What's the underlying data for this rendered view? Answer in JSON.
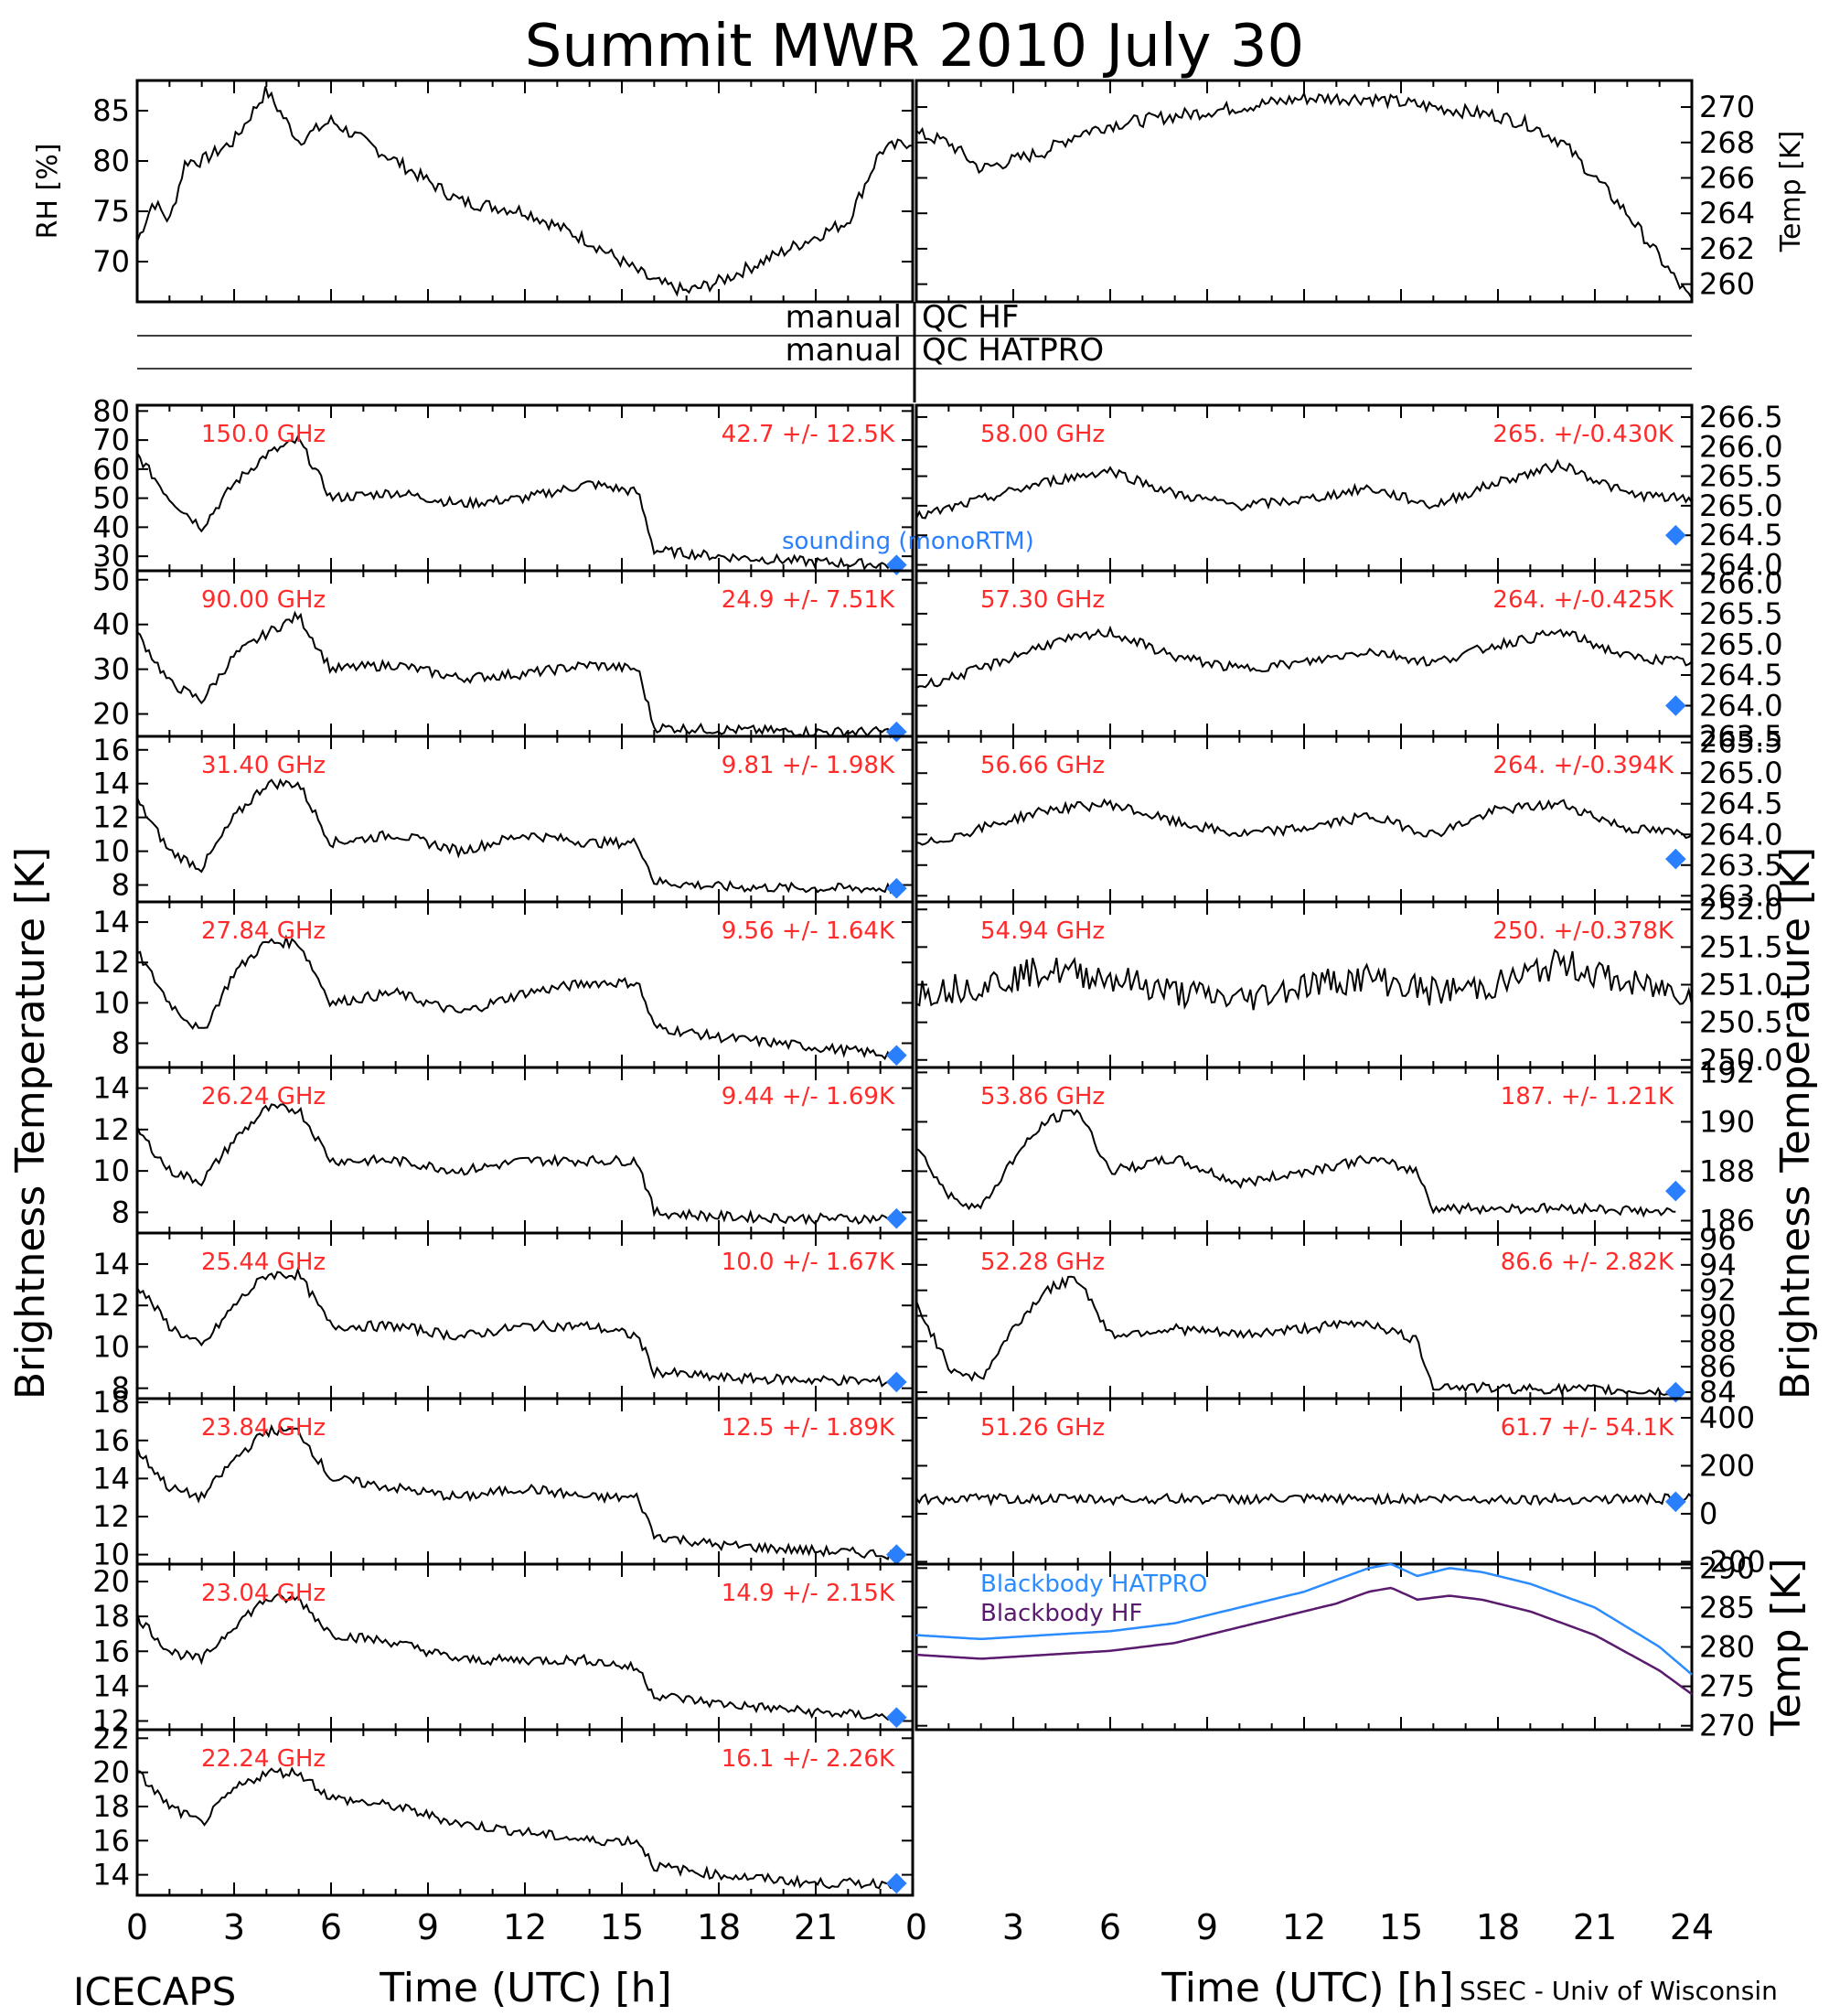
{
  "title": "Summit MWR 2010 July 30",
  "footer": {
    "left": "ICECAPS",
    "right": "SSEC - Univ of Wisconsin"
  },
  "axes": {
    "xlabel": "Time (UTC) [h]",
    "xticks": [
      "0",
      "3",
      "6",
      "9",
      "12",
      "15",
      "18",
      "21",
      "24"
    ],
    "ylabel_left": "Brightness Temperature [K]",
    "ylabel_right": "Brightness Temperature [K]"
  },
  "qc_rows": [
    {
      "left": "manual",
      "right": "QC HF"
    },
    {
      "left": "manual",
      "right": "QC HATPRO"
    }
  ],
  "colors": {
    "label_red": "#ff2a2a",
    "sounding_blue": "#2a7fff",
    "hatpro_blue": "#2a8cff",
    "hf_purple": "#5a1a6e"
  },
  "chart_data": [
    {
      "type": "line",
      "panel": "rh",
      "ylabel": "RH [%]",
      "ylim": [
        66,
        88
      ],
      "yticks": [
        70,
        75,
        80,
        85
      ],
      "x": [
        0,
        0.5,
        1,
        1.5,
        2,
        3,
        4,
        5,
        6,
        8,
        10,
        12,
        14,
        16,
        17,
        18,
        20,
        22,
        23,
        24
      ],
      "values": [
        72,
        76,
        74,
        80,
        80,
        82,
        87,
        82,
        84,
        80,
        76,
        75,
        72,
        68,
        67,
        68,
        71,
        74,
        81,
        82
      ]
    },
    {
      "type": "line",
      "panel": "temp",
      "ylabel": "Temp [K]",
      "ylim": [
        259,
        271.5
      ],
      "yticks": [
        260,
        262,
        264,
        266,
        268,
        270
      ],
      "x": [
        0,
        1,
        2,
        3,
        4,
        5,
        6,
        8,
        10,
        12,
        14,
        16,
        18,
        19,
        20,
        21,
        22,
        23,
        24
      ],
      "values": [
        268.5,
        268,
        266.5,
        267,
        267.5,
        268.5,
        269,
        269.5,
        270,
        270.5,
        270.5,
        270,
        269.5,
        269,
        268,
        266,
        264,
        261.5,
        259
      ]
    },
    {
      "type": "line",
      "panel": "left",
      "channel": "150.0 GHz",
      "stat": "42.7 +/- 12.5K",
      "ylim": [
        25,
        82
      ],
      "yticks": [
        30,
        40,
        50,
        60,
        70,
        80
      ],
      "x": [
        0,
        1,
        2,
        3,
        4,
        5,
        6,
        8,
        10,
        12,
        14,
        15.5,
        16,
        18,
        21,
        23.5
      ],
      "values": [
        65,
        50,
        40,
        55,
        65,
        70,
        50,
        52,
        48,
        50,
        55,
        52,
        32,
        30,
        28,
        27
      ],
      "sounding": [
        23.5,
        27
      ],
      "annotation": "sounding (monoRTM)"
    },
    {
      "type": "line",
      "panel": "left",
      "channel": "90.00 GHz",
      "stat": "24.9 +/- 7.51K",
      "ylim": [
        15,
        52
      ],
      "yticks": [
        20,
        30,
        40,
        50
      ],
      "x": [
        0,
        1,
        2,
        3,
        4,
        5,
        6,
        8,
        10,
        12,
        14,
        15.5,
        16,
        18,
        21,
        23.5
      ],
      "values": [
        38,
        27,
        23,
        33,
        38,
        42,
        30,
        31,
        28,
        29,
        31,
        30,
        17,
        16.5,
        16,
        16
      ],
      "sounding": [
        23.5,
        16
      ]
    },
    {
      "type": "line",
      "panel": "left",
      "channel": "31.40 GHz",
      "stat": "9.81 +/- 1.98K",
      "ylim": [
        7,
        16.8
      ],
      "yticks": [
        8,
        10,
        12,
        14,
        16
      ],
      "x": [
        0,
        1,
        2,
        3,
        4,
        5,
        6,
        8,
        10,
        12,
        14,
        15.5,
        16,
        18,
        21,
        23.5
      ],
      "values": [
        13,
        10,
        9,
        12,
        14,
        14,
        10.5,
        11,
        10,
        11,
        10.5,
        10.5,
        8.2,
        7.9,
        7.8,
        7.8
      ],
      "sounding": [
        23.5,
        7.8
      ]
    },
    {
      "type": "line",
      "panel": "left",
      "channel": "27.84 GHz",
      "stat": "9.56 +/- 1.64K",
      "ylim": [
        6.8,
        15
      ],
      "yticks": [
        8,
        10,
        12,
        14
      ],
      "x": [
        0,
        1,
        2,
        3,
        4,
        5,
        6,
        8,
        10,
        12,
        14,
        15.5,
        16,
        18,
        21,
        23.5
      ],
      "values": [
        12.5,
        10,
        8.5,
        11.5,
        13,
        13,
        10,
        10.5,
        9.5,
        10.5,
        11,
        11,
        8.8,
        8.3,
        7.8,
        7.4
      ],
      "sounding": [
        23.5,
        7.4
      ]
    },
    {
      "type": "line",
      "panel": "left",
      "channel": "26.24 GHz",
      "stat": "9.44 +/- 1.69K",
      "ylim": [
        7,
        15
      ],
      "yticks": [
        8,
        10,
        12,
        14
      ],
      "x": [
        0,
        1,
        2,
        3,
        4,
        5,
        6,
        8,
        10,
        12,
        14,
        15.5,
        16,
        18,
        21,
        23.5
      ],
      "values": [
        12,
        10,
        9.5,
        11.5,
        13,
        13,
        10.5,
        10.5,
        10,
        10.5,
        10.5,
        10.5,
        8,
        7.8,
        7.7,
        7.7
      ],
      "sounding": [
        23.5,
        7.7
      ]
    },
    {
      "type": "line",
      "panel": "left",
      "channel": "25.44 GHz",
      "stat": "10.0 +/- 1.67K",
      "ylim": [
        7.5,
        15.5
      ],
      "yticks": [
        8,
        10,
        12,
        14
      ],
      "x": [
        0,
        1,
        2,
        3,
        4,
        5,
        6,
        8,
        10,
        12,
        14,
        15.5,
        16,
        18,
        21,
        23.5
      ],
      "values": [
        13,
        11,
        10,
        12,
        13.5,
        13.5,
        11,
        11,
        10.5,
        11,
        11,
        10.5,
        8.8,
        8.5,
        8.4,
        8.3
      ],
      "sounding": [
        23.5,
        8.3
      ]
    },
    {
      "type": "line",
      "panel": "left",
      "channel": "23.84 GHz",
      "stat": "12.5 +/- 1.89K",
      "ylim": [
        9.5,
        18.2
      ],
      "yticks": [
        10,
        12,
        14,
        16,
        18
      ],
      "x": [
        0,
        1,
        2,
        3,
        4,
        5,
        6,
        8,
        10,
        12,
        14,
        15.5,
        16,
        18,
        21,
        23.5
      ],
      "values": [
        15.5,
        13.5,
        13,
        15,
        16.5,
        16.5,
        14,
        13.5,
        13,
        13.5,
        13,
        13,
        11,
        10.5,
        10.2,
        10
      ],
      "sounding": [
        23.5,
        10
      ]
    },
    {
      "type": "line",
      "panel": "left",
      "channel": "23.04 GHz",
      "stat": "14.9 +/- 2.15K",
      "ylim": [
        11.5,
        21
      ],
      "yticks": [
        12,
        14,
        16,
        18,
        20
      ],
      "x": [
        0,
        1,
        2,
        3,
        4,
        5,
        6,
        8,
        10,
        12,
        14,
        15.5,
        16,
        18,
        21,
        23.5
      ],
      "values": [
        18,
        16,
        15.5,
        17.5,
        19,
        19,
        17,
        16.5,
        15.5,
        15.5,
        15.5,
        15,
        13.5,
        13,
        12.5,
        12.2
      ],
      "sounding": [
        23.5,
        12.2
      ]
    },
    {
      "type": "line",
      "panel": "left",
      "channel": "22.24 GHz",
      "stat": "16.1 +/- 2.26K",
      "ylim": [
        12.8,
        22.5
      ],
      "yticks": [
        14,
        16,
        18,
        20,
        22
      ],
      "x": [
        0,
        1,
        2,
        3,
        4,
        5,
        6,
        8,
        10,
        12,
        14,
        15.5,
        16,
        18,
        21,
        23.5
      ],
      "values": [
        20,
        18,
        17,
        19,
        20,
        20,
        18.5,
        18,
        17,
        16.5,
        16,
        16,
        14.5,
        14,
        13.5,
        13.5
      ],
      "sounding": [
        23.5,
        13.5
      ]
    },
    {
      "type": "line",
      "panel": "right",
      "channel": "58.00 GHz",
      "stat": "265. +/-0.430K",
      "ylim": [
        263.9,
        266.7
      ],
      "yticks": [
        "264.0",
        "264.5",
        "265.0",
        "265.5",
        "266.0",
        "266.5"
      ],
      "x": [
        0,
        2,
        4,
        6,
        8,
        10,
        12,
        14,
        16,
        18,
        20,
        22,
        24
      ],
      "values": [
        264.8,
        265.1,
        265.4,
        265.6,
        265.2,
        265.0,
        265.1,
        265.3,
        265.0,
        265.4,
        265.7,
        265.2,
        265.1
      ],
      "sounding": [
        23.5,
        264.5
      ]
    },
    {
      "type": "line",
      "panel": "right",
      "channel": "57.30 GHz",
      "stat": "264. +/-0.425K",
      "ylim": [
        263.5,
        266.2
      ],
      "yticks": [
        "263.5",
        "264.0",
        "264.5",
        "265.0",
        "265.5",
        "266.0"
      ],
      "x": [
        0,
        2,
        4,
        6,
        8,
        10,
        12,
        14,
        16,
        18,
        20,
        22,
        24
      ],
      "values": [
        264.3,
        264.6,
        265.0,
        265.2,
        264.8,
        264.6,
        264.7,
        264.9,
        264.7,
        265.0,
        265.2,
        264.8,
        264.7
      ],
      "sounding": [
        23.5,
        264.0
      ]
    },
    {
      "type": "line",
      "panel": "right",
      "channel": "56.66 GHz",
      "stat": "264. +/-0.394K",
      "ylim": [
        262.9,
        265.6
      ],
      "yticks": [
        "263.0",
        "263.5",
        "264.0",
        "264.5",
        "265.0",
        "265.5"
      ],
      "x": [
        0,
        2,
        4,
        6,
        8,
        10,
        12,
        14,
        16,
        18,
        20,
        22,
        24
      ],
      "values": [
        263.8,
        264.1,
        264.4,
        264.5,
        264.2,
        264.0,
        264.1,
        264.3,
        264.0,
        264.4,
        264.5,
        264.1,
        264.0
      ],
      "sounding": [
        23.5,
        263.6
      ]
    },
    {
      "type": "line",
      "panel": "right",
      "channel": "54.94 GHz",
      "stat": "250. +/-0.378K",
      "ylim": [
        249.9,
        252.1
      ],
      "yticks": [
        "250.0",
        "250.5",
        "251.0",
        "251.5",
        "252.0"
      ],
      "x": [
        0,
        2,
        4,
        6,
        8,
        10,
        12,
        14,
        16,
        18,
        20,
        22,
        24
      ],
      "values": [
        250.9,
        251.0,
        251.2,
        251.1,
        250.9,
        250.8,
        251.0,
        251.1,
        250.9,
        251.0,
        251.3,
        251.0,
        250.9
      ]
    },
    {
      "type": "line",
      "panel": "right",
      "channel": "53.86 GHz",
      "stat": "187. +/- 1.21K",
      "ylim": [
        185.5,
        192.2
      ],
      "yticks": [
        186,
        188,
        190,
        192
      ],
      "x": [
        0,
        1,
        2,
        3,
        4,
        5,
        6,
        8,
        10,
        12,
        14,
        15.5,
        16,
        18,
        21,
        23.5
      ],
      "values": [
        189,
        187,
        186.5,
        188.5,
        190,
        190.5,
        188,
        188.5,
        187.5,
        188,
        188.5,
        188,
        186.5,
        186.5,
        186.5,
        186.3
      ],
      "sounding": [
        23.5,
        187.2
      ]
    },
    {
      "type": "line",
      "panel": "right",
      "channel": "52.28 GHz",
      "stat": "86.6 +/- 2.82K",
      "ylim": [
        83.5,
        96.5
      ],
      "yticks": [
        84,
        86,
        88,
        90,
        92,
        94,
        96
      ],
      "x": [
        0,
        1,
        2,
        3,
        4,
        5,
        6,
        8,
        10,
        12,
        14,
        15.5,
        16,
        18,
        21,
        23.5
      ],
      "values": [
        91,
        86,
        85,
        89,
        92,
        93,
        88.5,
        89,
        88.5,
        89,
        89.5,
        88,
        84.5,
        84.3,
        84.2,
        84
      ],
      "sounding": [
        23.5,
        84
      ]
    },
    {
      "type": "line",
      "panel": "right",
      "channel": "51.26 GHz",
      "stat": "61.7 +/- 54.1K",
      "ylim": [
        -210,
        480
      ],
      "yticks": [
        -200,
        0,
        200,
        400
      ],
      "x": [
        0,
        2,
        4,
        6,
        8,
        10,
        12,
        14,
        16,
        18,
        20,
        22,
        24
      ],
      "values": [
        60,
        62,
        61,
        60,
        62,
        61,
        60,
        61,
        62,
        61,
        60,
        62,
        61
      ],
      "sounding": [
        23.5,
        50
      ]
    },
    {
      "type": "line",
      "panel": "blackbody",
      "ylabel": "Temp [K]",
      "ylim": [
        269.5,
        290.5
      ],
      "yticks": [
        270,
        275,
        280,
        285,
        290
      ],
      "x": [
        0,
        2,
        4,
        6,
        8,
        10,
        12,
        13,
        14,
        14.7,
        15.5,
        16.5,
        17.5,
        19,
        21,
        23,
        24
      ],
      "series": [
        {
          "name": "Blackbody HATPRO",
          "values": [
            281.5,
            281,
            281.5,
            282,
            283,
            285,
            287,
            288.5,
            290,
            290.5,
            289,
            290,
            289.5,
            288,
            285,
            280,
            276.5
          ]
        },
        {
          "name": "Blackbody HF",
          "values": [
            279,
            278.5,
            279,
            279.5,
            280.5,
            282.5,
            284.5,
            285.5,
            287,
            287.5,
            286,
            286.5,
            286,
            284.5,
            281.5,
            277,
            274
          ]
        }
      ]
    }
  ]
}
